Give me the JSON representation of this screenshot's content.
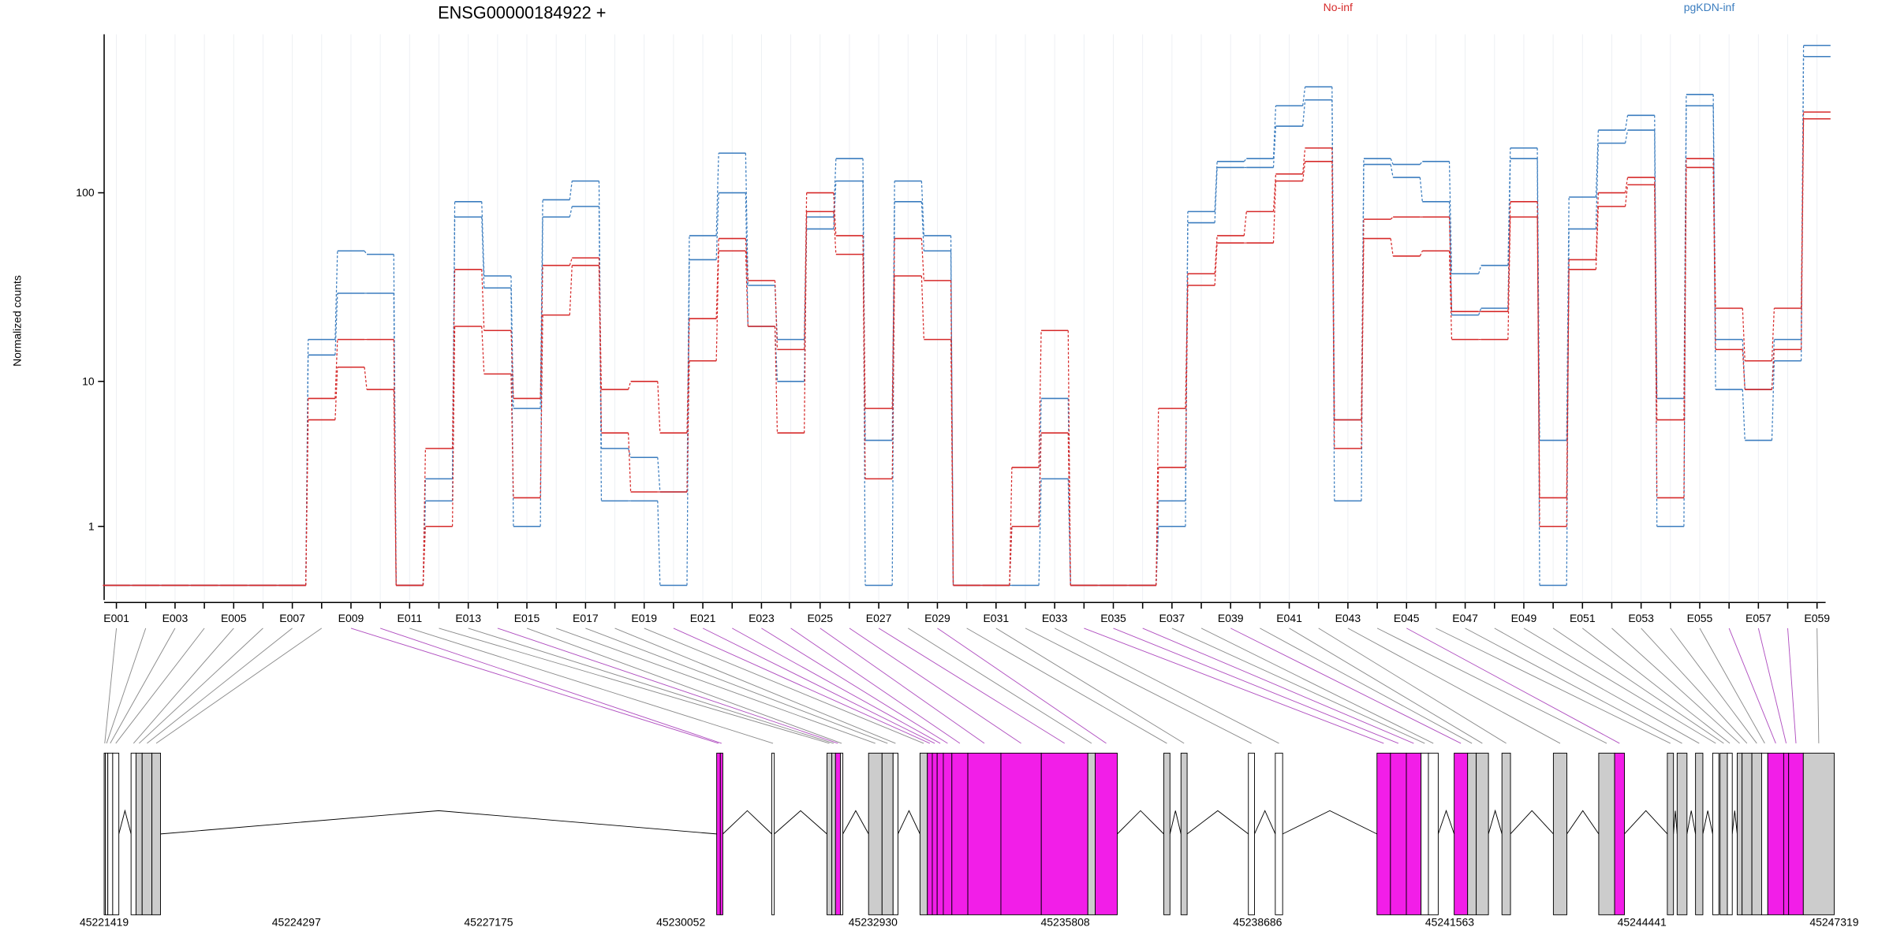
{
  "chart_data": {
    "type": "line",
    "title": "ENSG00000184922 +",
    "ylabel": "Normalized counts",
    "yscale": "log1p",
    "ylim": [
      0,
      650
    ],
    "yticks": [
      1,
      10,
      100
    ],
    "grid": true,
    "categories": [
      "E001",
      null,
      "E003",
      null,
      "E005",
      null,
      "E007",
      null,
      "E009",
      null,
      "E011",
      null,
      "E013",
      null,
      "E015",
      null,
      "E017",
      null,
      "E019",
      null,
      "E021",
      null,
      "E023",
      null,
      "E025",
      null,
      "E027",
      null,
      "E029",
      null,
      "E031",
      null,
      "E033",
      null,
      "E035",
      null,
      "E037",
      null,
      "E039",
      null,
      "E041",
      null,
      "E043",
      null,
      "E045",
      null,
      "E047",
      null,
      "E049",
      null,
      "E051",
      null,
      "E053",
      null,
      "E055",
      null,
      "E057",
      null,
      "E059"
    ],
    "series": [
      {
        "name": "pgKDN-inf",
        "color": "#3b7dbf",
        "values": [
          0,
          0,
          0,
          0,
          0,
          0,
          0,
          17,
          50,
          48,
          0,
          2.5,
          90,
          37,
          7,
          92,
          115,
          4,
          3.5,
          2,
          60,
          160,
          33,
          17,
          75,
          150,
          4.5,
          115,
          60,
          0,
          0,
          1,
          8,
          0,
          0,
          0,
          1.7,
          80,
          145,
          150,
          280,
          350,
          6,
          150,
          140,
          145,
          38,
          42,
          170,
          4.5,
          95,
          210,
          250,
          8,
          320,
          17,
          9,
          17,
          570
        ]
      },
      {
        "name": "pgKDN-inf",
        "color": "#3b7dbf",
        "values": [
          0,
          0,
          0,
          0,
          0,
          0,
          0,
          14,
          30,
          30,
          0,
          1.7,
          75,
          32,
          1,
          75,
          85,
          1.7,
          1.7,
          0,
          45,
          100,
          20,
          10,
          65,
          115,
          0,
          90,
          50,
          0,
          0,
          0,
          2.5,
          0,
          0,
          0,
          1,
          70,
          135,
          135,
          220,
          300,
          1.7,
          140,
          120,
          90,
          23,
          25,
          150,
          0,
          65,
          180,
          210,
          1,
          280,
          9,
          4.5,
          13,
          500
        ]
      },
      {
        "name": "No-inf",
        "color": "#d62a2a",
        "values": [
          0,
          0,
          0,
          0,
          0,
          0,
          0,
          8,
          17,
          17,
          0,
          4,
          40,
          19,
          8,
          42,
          46,
          9,
          10,
          5,
          22,
          58,
          35,
          15,
          100,
          60,
          7,
          58,
          35,
          0,
          0,
          3,
          19,
          0,
          0,
          0,
          7,
          38,
          60,
          80,
          125,
          170,
          6,
          73,
          75,
          75,
          24,
          24,
          90,
          1.8,
          45,
          100,
          120,
          6,
          150,
          25,
          13,
          25,
          260
        ]
      },
      {
        "name": "No-inf",
        "color": "#d62a2a",
        "values": [
          0,
          0,
          0,
          0,
          0,
          0,
          0,
          6,
          12,
          9,
          0,
          1,
          20,
          11,
          1.8,
          23,
          42,
          5,
          2,
          2,
          13,
          50,
          20,
          5,
          80,
          48,
          2.5,
          37,
          17,
          0,
          0,
          1,
          5,
          0,
          0,
          0,
          3,
          33,
          55,
          55,
          115,
          145,
          4,
          58,
          47,
          50,
          17,
          17,
          75,
          1,
          40,
          85,
          110,
          1.8,
          135,
          15,
          9,
          15,
          240
        ]
      }
    ],
    "genome_xlim": [
      45221419,
      45247319
    ],
    "genome_xticks": [
      45221419,
      45224297,
      45227175,
      45230052,
      45232930,
      45235808,
      45238686,
      45241563,
      45244441,
      45247319
    ],
    "exons": {
      "start": [
        45221419,
        45221437,
        45221474,
        45221547,
        45221822,
        45221896,
        45221988,
        45222134,
        45230589,
        45230644,
        45231414,
        45232240,
        45232313,
        45232368,
        45232441,
        45232863,
        45233065,
        45233230,
        45233633,
        45233743,
        45233817,
        45233890,
        45233982,
        45234110,
        45234349,
        45234844,
        45235449,
        45236146,
        45236256,
        45237283,
        45237540,
        45238549,
        45238952,
        45240474,
        45240676,
        45240914,
        45241134,
        45241244,
        45241630,
        45241831,
        45241960,
        45242345,
        45243115,
        45243794,
        45244032,
        45244821,
        45244968,
        45245243,
        45245500,
        45245610,
        45245720,
        45245867,
        45245940,
        45246087,
        45246233,
        45246325,
        45246563,
        45246637,
        45246857
      ],
      "end": [
        45221437,
        45221474,
        45221547,
        45221639,
        45221896,
        45221988,
        45222134,
        45222263,
        45230644,
        45230681,
        45231451,
        45232313,
        45232368,
        45232441,
        45232478,
        45233065,
        45233230,
        45233303,
        45233743,
        45233817,
        45233890,
        45233982,
        45234110,
        45234349,
        45234844,
        45235449,
        45236146,
        45236256,
        45236586,
        45237375,
        45237632,
        45238641,
        45239062,
        45240676,
        45240914,
        45241134,
        45241244,
        45241391,
        45241831,
        45241960,
        45242143,
        45242473,
        45243317,
        45244032,
        45244179,
        45244913,
        45245115,
        45245353,
        45245592,
        45245720,
        45245793,
        45245940,
        45246087,
        45246233,
        45246325,
        45246563,
        45246637,
        45246857,
        45247319
      ],
      "color": [
        "#ffffff",
        "#ffffff",
        "#ffffff",
        "#ffffff",
        "#ffffff",
        "#cccccc",
        "#cccccc",
        "#cccccc",
        "#f21ee8",
        "#f21ee8",
        "#ffffff",
        "#cccccc",
        "#cccccc",
        "#f21ee8",
        "#ffffff",
        "#cccccc",
        "#cccccc",
        "#ffffff",
        "#cccccc",
        "#f21ee8",
        "#f21ee8",
        "#f21ee8",
        "#f21ee8",
        "#f21ee8",
        "#f21ee8",
        "#f21ee8",
        "#f21ee8",
        "#cccccc",
        "#f21ee8",
        "#cccccc",
        "#cccccc",
        "#ffffff",
        "#ffffff",
        "#f21ee8",
        "#f21ee8",
        "#f21ee8",
        "#ffffff",
        "#ffffff",
        "#f21ee8",
        "#cccccc",
        "#cccccc",
        "#cccccc",
        "#cccccc",
        "#cccccc",
        "#f21ee8",
        "#cccccc",
        "#cccccc",
        "#cccccc",
        "#ffffff",
        "#cccccc",
        "#ffffff",
        "#cccccc",
        "#cccccc",
        "#cccccc",
        "#ffffff",
        "#f21ee8",
        "#f21ee8",
        "#f21ee8",
        "#cccccc"
      ]
    }
  }
}
